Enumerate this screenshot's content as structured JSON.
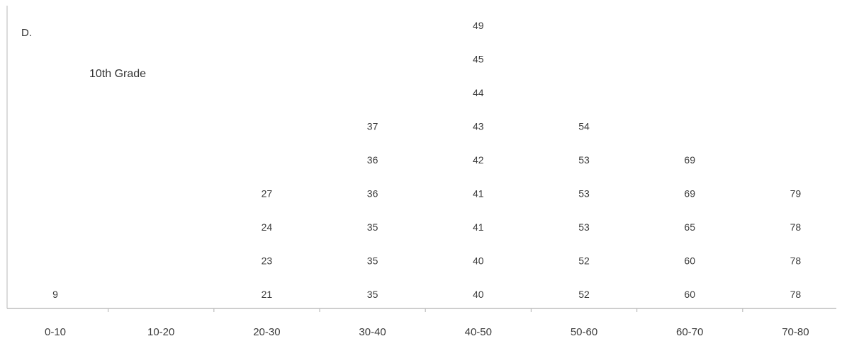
{
  "panel_label": "D.",
  "chart_data": {
    "type": "scatter",
    "subtype": "stem-and-leaf style dot plot (values stacked in bins)",
    "title": "10th Grade",
    "xlabel": "",
    "ylabel": "",
    "grid": false,
    "categories": [
      "0-10",
      "10-20",
      "20-30",
      "30-40",
      "40-50",
      "50-60",
      "60-70",
      "70-80"
    ],
    "bins": [
      {
        "range": "0-10",
        "values": [
          9
        ]
      },
      {
        "range": "10-20",
        "values": []
      },
      {
        "range": "20-30",
        "values": [
          21,
          23,
          24,
          27
        ]
      },
      {
        "range": "30-40",
        "values": [
          35,
          35,
          35,
          36,
          36,
          37
        ]
      },
      {
        "range": "40-50",
        "values": [
          40,
          40,
          41,
          41,
          42,
          43,
          44,
          45,
          49
        ]
      },
      {
        "range": "50-60",
        "values": [
          52,
          52,
          53,
          53,
          53,
          54
        ]
      },
      {
        "range": "60-70",
        "values": [
          60,
          60,
          65,
          69,
          69
        ]
      },
      {
        "range": "70-80",
        "values": [
          78,
          78,
          78,
          79
        ]
      }
    ]
  }
}
